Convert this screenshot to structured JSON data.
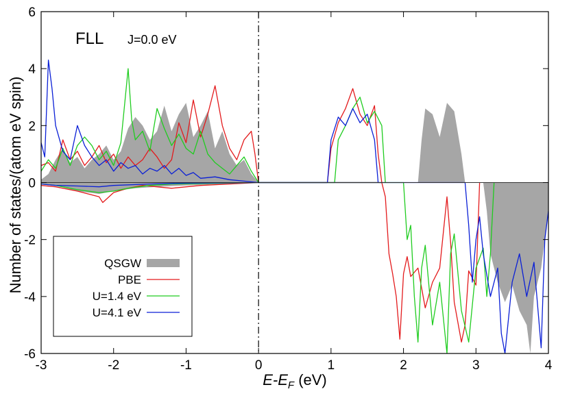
{
  "chart_data": {
    "type": "area",
    "xlabel_main": "E-E",
    "xlabel_sub": "F",
    "xlabel_unit": " (eV)",
    "ylabel": "Number of states/(atom eV spin)",
    "xlim": [
      -3,
      4
    ],
    "ylim": [
      -6,
      6
    ],
    "xticks": [
      -3,
      -2,
      -1,
      0,
      1,
      2,
      3,
      4
    ],
    "yticks": [
      -6,
      -4,
      -2,
      0,
      2,
      4,
      6
    ],
    "fermi_line_x": 0,
    "annotations": {
      "main": "FLL",
      "sub": "J=0.0 eV"
    },
    "legend_position": "bottom-left",
    "series": [
      {
        "name": "QSGW",
        "style": "filled",
        "color": "#a6a6a6",
        "up": [
          [
            -3,
            0.1
          ],
          [
            -2.9,
            0.3
          ],
          [
            -2.8,
            0.8
          ],
          [
            -2.7,
            1.2
          ],
          [
            -2.6,
            0.7
          ],
          [
            -2.5,
            0.9
          ],
          [
            -2.4,
            0.5
          ],
          [
            -2.3,
            0.8
          ],
          [
            -2.2,
            1.0
          ],
          [
            -2.1,
            1.3
          ],
          [
            -2.0,
            0.8
          ],
          [
            -1.9,
            1.1
          ],
          [
            -1.8,
            1.9
          ],
          [
            -1.7,
            2.3
          ],
          [
            -1.6,
            2.0
          ],
          [
            -1.5,
            1.5
          ],
          [
            -1.4,
            1.8
          ],
          [
            -1.3,
            2.7
          ],
          [
            -1.2,
            1.8
          ],
          [
            -1.1,
            2.4
          ],
          [
            -1.0,
            2.8
          ],
          [
            -0.9,
            1.6
          ],
          [
            -0.8,
            2.0
          ],
          [
            -0.7,
            2.5
          ],
          [
            -0.6,
            1.2
          ],
          [
            -0.5,
            1.8
          ],
          [
            -0.4,
            1.0
          ],
          [
            -0.3,
            0.6
          ],
          [
            -0.2,
            0.8
          ],
          [
            -0.1,
            0.3
          ],
          [
            0,
            0
          ],
          [
            2.2,
            0
          ],
          [
            2.25,
            1.5
          ],
          [
            2.3,
            2.6
          ],
          [
            2.4,
            2.4
          ],
          [
            2.5,
            1.6
          ],
          [
            2.6,
            2.8
          ],
          [
            2.7,
            2.5
          ],
          [
            2.8,
            1.0
          ],
          [
            2.85,
            0
          ]
        ],
        "down": [
          [
            -3,
            -0.05
          ],
          [
            -2.8,
            -0.1
          ],
          [
            -2.5,
            -0.3
          ],
          [
            -2.2,
            -0.4
          ],
          [
            -2.0,
            -0.3
          ],
          [
            -1.7,
            -0.2
          ],
          [
            -1.4,
            -0.15
          ],
          [
            -1.0,
            -0.1
          ],
          [
            -0.5,
            -0.05
          ],
          [
            0,
            0
          ],
          [
            3.1,
            0
          ],
          [
            3.15,
            -1.0
          ],
          [
            3.2,
            -2.5
          ],
          [
            3.3,
            -3.5
          ],
          [
            3.4,
            -4.2
          ],
          [
            3.5,
            -3.6
          ],
          [
            3.6,
            -4.5
          ],
          [
            3.7,
            -5.0
          ],
          [
            3.75,
            -6.0
          ],
          [
            3.8,
            -4.0
          ],
          [
            3.9,
            -3.0
          ],
          [
            4.0,
            -1.0
          ]
        ]
      },
      {
        "name": "PBE",
        "style": "line",
        "color": "#e31a1c",
        "up": [
          [
            -3,
            0.6
          ],
          [
            -2.9,
            0.7
          ],
          [
            -2.8,
            0.4
          ],
          [
            -2.7,
            1.5
          ],
          [
            -2.6,
            0.8
          ],
          [
            -2.5,
            1.1
          ],
          [
            -2.4,
            0.6
          ],
          [
            -2.3,
            0.9
          ],
          [
            -2.2,
            1.3
          ],
          [
            -2.1,
            0.7
          ],
          [
            -2.0,
            1.0
          ],
          [
            -1.9,
            0.5
          ],
          [
            -1.8,
            0.9
          ],
          [
            -1.7,
            0.6
          ],
          [
            -1.6,
            0.8
          ],
          [
            -1.5,
            1.2
          ],
          [
            -1.4,
            0.9
          ],
          [
            -1.3,
            0.5
          ],
          [
            -1.2,
            0.8
          ],
          [
            -1.1,
            2.1
          ],
          [
            -1.0,
            1.4
          ],
          [
            -0.9,
            2.9
          ],
          [
            -0.8,
            1.6
          ],
          [
            -0.7,
            2.4
          ],
          [
            -0.6,
            3.4
          ],
          [
            -0.5,
            2.0
          ],
          [
            -0.4,
            1.2
          ],
          [
            -0.3,
            0.8
          ],
          [
            -0.2,
            1.5
          ],
          [
            -0.1,
            1.8
          ],
          [
            -0.05,
            1.0
          ],
          [
            0,
            0
          ],
          [
            0.95,
            0
          ],
          [
            1.0,
            1.2
          ],
          [
            1.1,
            2.1
          ],
          [
            1.2,
            2.6
          ],
          [
            1.3,
            3.3
          ],
          [
            1.4,
            2.4
          ],
          [
            1.5,
            2.0
          ],
          [
            1.6,
            2.7
          ],
          [
            1.65,
            1.0
          ],
          [
            1.7,
            0
          ]
        ],
        "down": [
          [
            -3,
            -0.1
          ],
          [
            -2.8,
            -0.15
          ],
          [
            -2.5,
            -0.3
          ],
          [
            -2.2,
            -0.5
          ],
          [
            -2.15,
            -0.7
          ],
          [
            -2.0,
            -0.35
          ],
          [
            -1.8,
            -0.2
          ],
          [
            -1.6,
            -0.1
          ],
          [
            -1.2,
            -0.2
          ],
          [
            -0.8,
            -0.1
          ],
          [
            -0.4,
            -0.05
          ],
          [
            0,
            0
          ],
          [
            1.7,
            0
          ],
          [
            1.75,
            -0.5
          ],
          [
            1.8,
            -2.5
          ],
          [
            1.85,
            -3.2
          ],
          [
            1.9,
            -4.0
          ],
          [
            1.95,
            -5.5
          ],
          [
            2.0,
            -3.2
          ],
          [
            2.05,
            -2.6
          ],
          [
            2.1,
            -3.3
          ],
          [
            2.2,
            -3.0
          ],
          [
            2.3,
            -4.4
          ],
          [
            2.4,
            -3.5
          ],
          [
            2.5,
            -3.0
          ],
          [
            2.6,
            -0.5
          ],
          [
            2.65,
            -2.1
          ],
          [
            2.7,
            -4.2
          ],
          [
            2.8,
            -5.6
          ],
          [
            2.85,
            -5.0
          ],
          [
            2.9,
            -3.1
          ],
          [
            3.0,
            -3.6
          ],
          [
            3.05,
            0
          ]
        ]
      },
      {
        "name": "U=1.4 eV",
        "style": "line",
        "color": "#1fcc1f",
        "up": [
          [
            -3,
            0.4
          ],
          [
            -2.9,
            0.8
          ],
          [
            -2.8,
            0.5
          ],
          [
            -2.7,
            1.2
          ],
          [
            -2.6,
            0.6
          ],
          [
            -2.5,
            1.3
          ],
          [
            -2.4,
            1.6
          ],
          [
            -2.3,
            1.3
          ],
          [
            -2.2,
            0.8
          ],
          [
            -2.1,
            1.1
          ],
          [
            -2.0,
            0.6
          ],
          [
            -1.9,
            1.4
          ],
          [
            -1.8,
            4.0
          ],
          [
            -1.75,
            2.2
          ],
          [
            -1.7,
            1.5
          ],
          [
            -1.6,
            1.8
          ],
          [
            -1.5,
            1.1
          ],
          [
            -1.4,
            2.6
          ],
          [
            -1.3,
            1.9
          ],
          [
            -1.2,
            1.3
          ],
          [
            -1.1,
            1.7
          ],
          [
            -1.0,
            1.2
          ],
          [
            -0.9,
            1.0
          ],
          [
            -0.8,
            1.8
          ],
          [
            -0.7,
            1.0
          ],
          [
            -0.6,
            0.7
          ],
          [
            -0.5,
            0.5
          ],
          [
            -0.4,
            0.3
          ],
          [
            -0.3,
            0.6
          ],
          [
            -0.2,
            0.9
          ],
          [
            -0.1,
            0.4
          ],
          [
            0,
            0
          ],
          [
            1.05,
            0
          ],
          [
            1.1,
            1.5
          ],
          [
            1.2,
            2.0
          ],
          [
            1.3,
            2.6
          ],
          [
            1.4,
            3.0
          ],
          [
            1.5,
            2.1
          ],
          [
            1.6,
            2.5
          ],
          [
            1.7,
            2.0
          ],
          [
            1.75,
            0
          ]
        ],
        "down": [
          [
            -3,
            -0.05
          ],
          [
            -2.8,
            -0.1
          ],
          [
            -2.5,
            -0.25
          ],
          [
            -2.2,
            -0.35
          ],
          [
            -2.0,
            -0.3
          ],
          [
            -1.8,
            -0.2
          ],
          [
            -1.5,
            -0.1
          ],
          [
            -1.2,
            -0.05
          ],
          [
            0,
            0
          ],
          [
            2.0,
            0
          ],
          [
            2.05,
            -2.0
          ],
          [
            2.1,
            -1.5
          ],
          [
            2.15,
            -4.0
          ],
          [
            2.2,
            -5.6
          ],
          [
            2.25,
            -3.0
          ],
          [
            2.3,
            -2.2
          ],
          [
            2.4,
            -5.0
          ],
          [
            2.5,
            -3.5
          ],
          [
            2.6,
            -6.0
          ],
          [
            2.65,
            -2.5
          ],
          [
            2.7,
            -1.8
          ],
          [
            2.8,
            -4.5
          ],
          [
            2.9,
            -5.6
          ],
          [
            3.0,
            -3.0
          ],
          [
            3.1,
            -2.3
          ],
          [
            3.15,
            -4.0
          ],
          [
            3.2,
            -2.5
          ],
          [
            3.25,
            0
          ]
        ]
      },
      {
        "name": "U=4.1 eV",
        "style": "line",
        "color": "#0a1fd6",
        "up": [
          [
            -3,
            1.4
          ],
          [
            -2.95,
            0.9
          ],
          [
            -2.9,
            4.3
          ],
          [
            -2.85,
            3.3
          ],
          [
            -2.8,
            2.0
          ],
          [
            -2.7,
            1.1
          ],
          [
            -2.6,
            0.8
          ],
          [
            -2.5,
            2.0
          ],
          [
            -2.4,
            1.3
          ],
          [
            -2.3,
            0.9
          ],
          [
            -2.2,
            0.6
          ],
          [
            -2.1,
            0.8
          ],
          [
            -2.0,
            0.4
          ],
          [
            -1.9,
            0.7
          ],
          [
            -1.8,
            0.5
          ],
          [
            -1.7,
            0.6
          ],
          [
            -1.6,
            0.3
          ],
          [
            -1.5,
            0.5
          ],
          [
            -1.4,
            0.4
          ],
          [
            -1.3,
            0.6
          ],
          [
            -1.2,
            0.3
          ],
          [
            -1.1,
            0.5
          ],
          [
            -1.0,
            0.25
          ],
          [
            -0.9,
            0.35
          ],
          [
            -0.8,
            0.15
          ],
          [
            -0.6,
            0.2
          ],
          [
            -0.4,
            0.1
          ],
          [
            -0.2,
            0.05
          ],
          [
            0,
            0
          ],
          [
            0.95,
            0
          ],
          [
            1.0,
            1.5
          ],
          [
            1.1,
            2.3
          ],
          [
            1.2,
            2.0
          ],
          [
            1.3,
            2.6
          ],
          [
            1.4,
            2.1
          ],
          [
            1.5,
            2.4
          ],
          [
            1.6,
            1.5
          ],
          [
            1.65,
            0
          ]
        ],
        "down": [
          [
            -3,
            -0.05
          ],
          [
            -2.8,
            -0.1
          ],
          [
            -2.5,
            -0.12
          ],
          [
            -2.2,
            -0.15
          ],
          [
            -2.0,
            -0.1
          ],
          [
            -1.5,
            -0.05
          ],
          [
            -1.0,
            -0.02
          ],
          [
            0,
            0
          ],
          [
            2.85,
            0
          ],
          [
            2.9,
            -1.5
          ],
          [
            2.95,
            -3.5
          ],
          [
            3.0,
            -2.0
          ],
          [
            3.05,
            -1.2
          ],
          [
            3.1,
            -2.5
          ],
          [
            3.2,
            -4.0
          ],
          [
            3.3,
            -3.0
          ],
          [
            3.35,
            -5.3
          ],
          [
            3.4,
            -6.0
          ],
          [
            3.5,
            -3.5
          ],
          [
            3.6,
            -2.5
          ],
          [
            3.7,
            -4.0
          ],
          [
            3.8,
            -2.8
          ],
          [
            3.9,
            -5.8
          ],
          [
            3.95,
            -2.0
          ],
          [
            4.0,
            -1.0
          ]
        ]
      }
    ]
  }
}
